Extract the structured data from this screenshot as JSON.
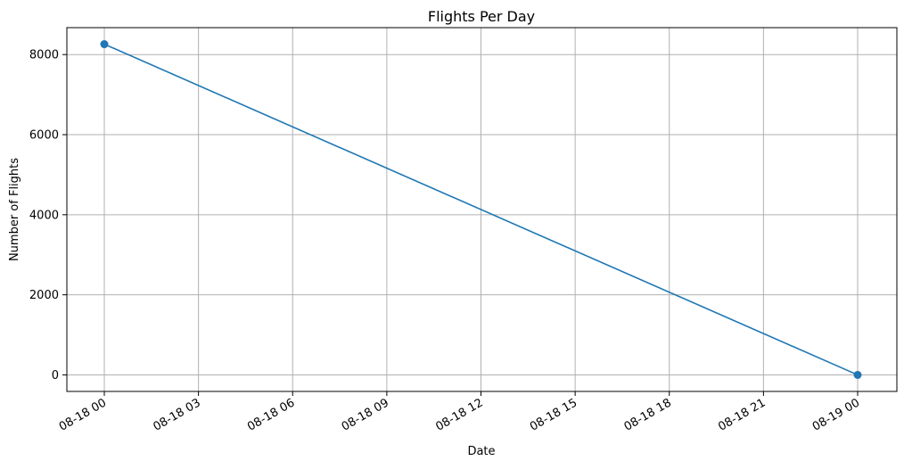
{
  "chart_data": {
    "type": "line",
    "title": "Flights Per Day",
    "xlabel": "Date",
    "ylabel": "Number of Flights",
    "x": [
      "08-18 00",
      "08-19 00"
    ],
    "series": [
      {
        "values": [
          8260,
          0
        ],
        "color": "#1f77b4",
        "marker": "circle"
      }
    ],
    "x_tick_labels": [
      "08-18 00",
      "08-18 03",
      "08-18 06",
      "08-18 09",
      "08-18 12",
      "08-18 15",
      "08-18 18",
      "08-18 21",
      "08-19 00"
    ],
    "y_ticks": [
      0,
      2000,
      4000,
      6000,
      8000
    ],
    "ylim": [
      -413,
      8673
    ],
    "grid": true,
    "colors": {
      "line": "#1f77b4",
      "grid": "#b0b0b0",
      "axes": "#000000"
    }
  }
}
